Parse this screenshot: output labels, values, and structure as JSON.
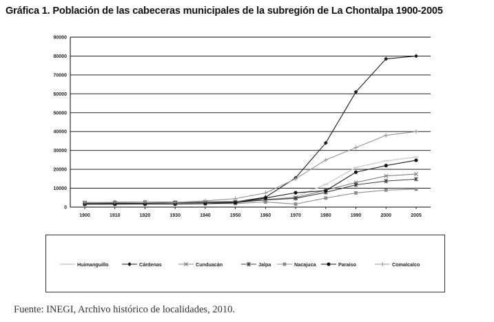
{
  "page": {
    "title": "Gráfica 1. Población de las cabeceras municipales de la subregión de La Chontalpa 1900-2005",
    "source": "Fuente: INEGI, Archivo histórico de localidades, 2010."
  },
  "chart_data": {
    "type": "line",
    "title": "Gráfica 1. Población de las cabeceras municipales de la subregión de La Chontalpa 1900-2005",
    "xlabel": "",
    "ylabel": "",
    "x": [
      "1900",
      "1910",
      "1920",
      "1930",
      "1940",
      "1950",
      "1960",
      "1970",
      "1980",
      "1990",
      "2000",
      "2005"
    ],
    "ylim": [
      0,
      90000
    ],
    "yticks": [
      0,
      10000,
      20000,
      30000,
      40000,
      50000,
      60000,
      70000,
      80000,
      90000
    ],
    "grid": true,
    "legend_position": "bottom",
    "series": [
      {
        "name": "Huimanguillo",
        "marker": "dash",
        "color": "#d2d2d2",
        "values": [
          2000,
          2200,
          2400,
          2400,
          2800,
          3000,
          4000,
          5500,
          12000,
          21000,
          24500,
          26500
        ]
      },
      {
        "name": "Cárdenas",
        "marker": "diamond",
        "color": "#1a1a1a",
        "values": [
          1800,
          2600,
          2700,
          2600,
          2500,
          2800,
          5200,
          15500,
          34000,
          61000,
          78500,
          80000
        ]
      },
      {
        "name": "Cunduacán",
        "marker": "x",
        "color": "#808080",
        "values": [
          2500,
          2400,
          2600,
          2500,
          2800,
          3000,
          4000,
          5000,
          9000,
          13000,
          16500,
          17500
        ]
      },
      {
        "name": "Jalpa",
        "marker": "star",
        "color": "#3c3c3c",
        "values": [
          2000,
          2000,
          2000,
          2300,
          2400,
          2400,
          3800,
          4600,
          7800,
          11800,
          13800,
          14800
        ]
      },
      {
        "name": "Nacajuca",
        "marker": "square",
        "color": "#8c8c8c",
        "values": [
          1500,
          1500,
          1700,
          1700,
          1800,
          1900,
          2700,
          1600,
          4800,
          7500,
          9000,
          9500
        ]
      },
      {
        "name": "Paraíso",
        "marker": "circle",
        "color": "#141414",
        "values": [
          1500,
          1600,
          1600,
          1600,
          1800,
          2300,
          4800,
          7600,
          8700,
          18500,
          22000,
          24800
        ]
      },
      {
        "name": "Comalcalco",
        "marker": "plus",
        "color": "#969696",
        "values": [
          2300,
          2600,
          2700,
          2500,
          3300,
          4500,
          7500,
          15000,
          25000,
          31500,
          38000,
          40000
        ]
      }
    ]
  }
}
